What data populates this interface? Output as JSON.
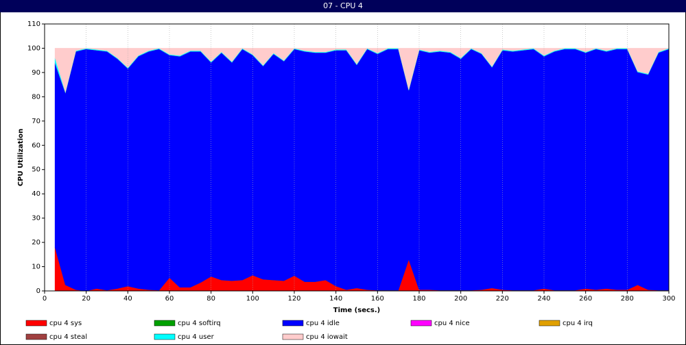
{
  "chart_data": {
    "type": "stacked-area",
    "title": "07 - CPU 4",
    "x_label": "Time (secs.)",
    "y_label": "CPU Utilization",
    "x": [
      5,
      10,
      15,
      20,
      25,
      30,
      35,
      40,
      45,
      50,
      55,
      60,
      65,
      70,
      75,
      80,
      85,
      90,
      95,
      100,
      105,
      110,
      115,
      120,
      125,
      130,
      135,
      140,
      145,
      150,
      155,
      160,
      165,
      170,
      175,
      180,
      185,
      190,
      195,
      200,
      205,
      210,
      215,
      220,
      225,
      230,
      235,
      240,
      245,
      250,
      255,
      260,
      265,
      270,
      275,
      280,
      285,
      290,
      295,
      300
    ],
    "xlim": [
      0,
      300
    ],
    "xticks": [
      0,
      20,
      40,
      60,
      80,
      100,
      120,
      140,
      160,
      180,
      200,
      220,
      240,
      260,
      280,
      300
    ],
    "ylim": [
      0,
      110
    ],
    "yticks": [
      0,
      10,
      20,
      30,
      40,
      50,
      60,
      70,
      80,
      90,
      100,
      110
    ],
    "grid": true,
    "series": [
      {
        "name": "cpu 4 sys",
        "color": "#ff0000",
        "values": [
          18,
          2.5,
          0.5,
          0,
          1,
          0.3,
          1,
          2,
          1,
          0.5,
          0.3,
          5.5,
          1.5,
          1.5,
          3.5,
          6,
          4.5,
          4.2,
          4.5,
          6.5,
          4.8,
          4.5,
          4.2,
          6.3,
          3.8,
          3.8,
          4.5,
          2,
          0.5,
          1.2,
          0.5,
          0.3,
          0.3,
          0.3,
          13,
          0.5,
          0.5,
          0.3,
          0.3,
          0.3,
          0.3,
          0.5,
          1.2,
          0.5,
          0.3,
          0.3,
          0.3,
          1,
          0.3,
          0.3,
          0.3,
          1,
          0.5,
          1,
          0.5,
          0.5,
          2.5,
          0.5,
          0.3,
          0.3
        ]
      },
      {
        "name": "cpu 4 softirq",
        "color": "#00a000",
        "values": [
          0,
          0,
          0,
          0,
          0,
          0,
          0,
          0,
          0,
          0,
          0,
          0,
          0,
          0,
          0,
          0,
          0,
          0,
          0,
          0,
          0,
          0,
          0,
          0,
          0,
          0,
          0,
          0,
          0,
          0,
          0,
          0,
          0,
          0,
          0,
          0,
          0,
          0,
          0,
          0,
          0,
          0,
          0,
          0,
          0,
          0,
          0,
          0,
          0,
          0,
          0,
          0,
          0,
          0,
          0,
          0,
          0,
          0,
          0,
          0
        ]
      },
      {
        "name": "cpu 4 idle",
        "color": "#0000ff",
        "values": [
          76,
          79.2,
          98.2,
          99.7,
          98.2,
          98.4,
          94.7,
          89.7,
          95.7,
          98.2,
          99.4,
          91.7,
          95.2,
          97.2,
          95.2,
          88.2,
          93.7,
          90,
          95.2,
          90.7,
          87.9,
          93.2,
          90.5,
          93.4,
          94.9,
          94.4,
          93.7,
          97.2,
          98.7,
          92,
          99.2,
          97.4,
          99.4,
          99.4,
          69.7,
          98.7,
          97.7,
          98.4,
          97.9,
          95.4,
          99.4,
          97.2,
          91,
          98.7,
          98.4,
          98.9,
          99.4,
          95.7,
          98.4,
          99.4,
          99.4,
          97.2,
          99.2,
          97.7,
          99.2,
          99.2,
          87.7,
          88.7,
          97.9,
          99.4
        ]
      },
      {
        "name": "cpu 4 nice",
        "color": "#ff00ff",
        "values": [
          0,
          0,
          0,
          0,
          0,
          0,
          0,
          0,
          0,
          0,
          0,
          0,
          0,
          0,
          0,
          0,
          0,
          0,
          0,
          0,
          0,
          0,
          0,
          0,
          0,
          0,
          0,
          0,
          0,
          0,
          0,
          0,
          0,
          0,
          0,
          0,
          0,
          0,
          0,
          0,
          0,
          0,
          0,
          0,
          0,
          0,
          0,
          0,
          0,
          0,
          0,
          0,
          0,
          0,
          0,
          0,
          0,
          0,
          0,
          0
        ]
      },
      {
        "name": "cpu 4 irq",
        "color": "#e0a000",
        "values": [
          0,
          0,
          0,
          0,
          0,
          0,
          0,
          0,
          0,
          0,
          0,
          0,
          0,
          0,
          0,
          0,
          0,
          0,
          0,
          0,
          0,
          0,
          0,
          0,
          0,
          0,
          0,
          0,
          0,
          0,
          0,
          0,
          0,
          0,
          0,
          0,
          0,
          0,
          0,
          0,
          0,
          0,
          0,
          0,
          0,
          0,
          0,
          0,
          0,
          0,
          0,
          0,
          0,
          0,
          0,
          0,
          0,
          0,
          0,
          0
        ]
      },
      {
        "name": "cpu 4 steal",
        "color": "#a04040",
        "values": [
          0,
          0,
          0,
          0,
          0,
          0,
          0,
          0,
          0,
          0,
          0,
          0,
          0,
          0,
          0,
          0,
          0,
          0,
          0,
          0,
          0,
          0,
          0,
          0,
          0,
          0,
          0,
          0,
          0,
          0,
          0,
          0,
          0,
          0,
          0,
          0,
          0,
          0,
          0,
          0,
          0,
          0,
          0,
          0,
          0,
          0,
          0,
          0,
          0,
          0,
          0,
          0,
          0,
          0,
          0,
          0,
          0,
          0,
          0,
          0
        ]
      },
      {
        "name": "cpu 4 user",
        "color": "#00ffff",
        "values": [
          2,
          0.3,
          0.3,
          0.3,
          0.3,
          0.3,
          0.3,
          0.3,
          0.3,
          0.3,
          0.3,
          0.3,
          0.3,
          0.3,
          0.3,
          0.3,
          0.3,
          0.3,
          0.3,
          0.3,
          0.3,
          0.3,
          0.3,
          0.3,
          0.3,
          0.3,
          0.3,
          0.3,
          0.3,
          0.3,
          0.3,
          0.3,
          0.3,
          0.3,
          0.3,
          0.3,
          0.3,
          0.3,
          0.3,
          0.3,
          0.3,
          0.3,
          0.3,
          0.3,
          0.3,
          0.3,
          0.3,
          0.3,
          0.3,
          0.3,
          0.3,
          0.3,
          0.3,
          0.3,
          0.3,
          0.3,
          0.3,
          0.3,
          0.3,
          0.3
        ]
      },
      {
        "name": "cpu 4 iowait",
        "color": "#ffcccc",
        "values": [
          4,
          18,
          1,
          0,
          0.5,
          1,
          4,
          8,
          3,
          1,
          0,
          2.5,
          3,
          1,
          1,
          5.5,
          1.5,
          5.5,
          0,
          2.5,
          7,
          2,
          5,
          0,
          1,
          1.5,
          1.5,
          0.5,
          0.5,
          6.5,
          0,
          2,
          0,
          0,
          17,
          0.5,
          1.5,
          1,
          1.5,
          4,
          0,
          2,
          7.5,
          0.5,
          1,
          0.5,
          0,
          3,
          1,
          0,
          0,
          1.5,
          0,
          1,
          0,
          0,
          9.5,
          10.5,
          1.5,
          0
        ]
      }
    ]
  }
}
